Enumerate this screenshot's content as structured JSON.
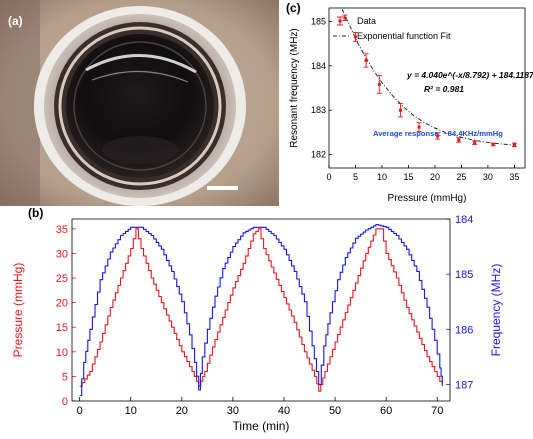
{
  "panels": {
    "a": "(a)",
    "b": "(b)",
    "c": "(c)"
  },
  "colors": {
    "pressure": "#e8171d",
    "frequency": "#1616e6",
    "fit": "#222222",
    "error_bar": "#e8171d",
    "annotation": "#1f49d6"
  },
  "photo": {
    "scale_bar_color": "#ffffff"
  },
  "chart_data": [
    {
      "panel": "c",
      "type": "scatter",
      "xlabel": "Pressure (mmHg)",
      "ylabel": "Resonant frequency (MHz)",
      "xlim": [
        0,
        37
      ],
      "ylim": [
        185.3,
        181.7
      ],
      "y_inverted": true,
      "xticks": [
        0,
        5,
        10,
        15,
        20,
        25,
        30,
        35
      ],
      "yticks": [
        182,
        183,
        184,
        185
      ],
      "legend_position": "top-left",
      "legend": [
        "Data",
        "Exponential function Fit"
      ],
      "series": [
        {
          "name": "Data",
          "x": [
            3.0,
            5.0,
            7.0,
            9.5,
            13.5,
            17.0,
            20.5,
            24.5,
            27.5,
            31.0,
            35.0
          ],
          "y": [
            185.08,
            184.65,
            184.12,
            183.58,
            183.0,
            182.62,
            182.42,
            182.33,
            182.27,
            182.23,
            182.22
          ],
          "error": [
            0.06,
            0.1,
            0.15,
            0.2,
            0.15,
            0.1,
            0.07,
            0.05,
            0.04,
            0.03,
            0.04
          ]
        },
        {
          "name": "Exponential function Fit",
          "x": [
            2.5,
            4,
            5.5,
            7,
            8.5,
            10,
            12,
            14,
            16,
            18,
            20,
            22,
            25,
            28,
            31,
            35
          ],
          "y": [
            185.27,
            184.88,
            184.5,
            184.18,
            183.88,
            183.62,
            183.33,
            183.08,
            182.88,
            182.72,
            182.6,
            182.5,
            182.39,
            182.31,
            182.26,
            182.21
          ]
        }
      ],
      "annotations": {
        "equation": "y = 4.040e^(-x/8.792) + 184.1187",
        "r2": "R² = 0.981",
        "average": "Average response: ~84.4KHz/mmHg"
      }
    },
    {
      "panel": "b",
      "type": "line",
      "xlabel": "Time (min)",
      "ylabel": "Pressure (mmHg)",
      "ylabel_right": "Frequency (MHz)",
      "xlim": [
        -1.5,
        72.5
      ],
      "ylim": [
        0,
        37
      ],
      "ylim_right": [
        187.3,
        184
      ],
      "xticks": [
        0,
        10,
        20,
        30,
        40,
        50,
        60,
        70
      ],
      "yticks": [
        0,
        5,
        10,
        15,
        20,
        25,
        30,
        35
      ],
      "yticks_right": [
        184,
        185,
        186,
        187
      ],
      "series": [
        {
          "name": "Pressure",
          "axis": "left",
          "x": [
            0,
            2,
            4,
            6,
            8,
            10,
            11,
            12,
            14,
            16,
            18,
            20,
            22,
            23.3,
            24.5,
            26,
            28,
            30,
            32,
            34,
            35,
            36,
            38,
            40,
            42,
            44,
            46,
            46.8,
            48,
            50,
            52,
            54,
            56,
            58,
            59,
            60,
            62,
            64,
            66,
            68,
            70,
            71
          ],
          "y": [
            3,
            6,
            12,
            19,
            25,
            31,
            35,
            31,
            25,
            20,
            15,
            10,
            6,
            3,
            6,
            11,
            17,
            23,
            28,
            34,
            35,
            31,
            26,
            21,
            16,
            10,
            5,
            2,
            6,
            12,
            18,
            24,
            30,
            35,
            35,
            30,
            25,
            19,
            14,
            9,
            5,
            3
          ]
        },
        {
          "name": "Frequency",
          "axis": "right",
          "x": [
            0,
            0.8,
            2,
            4,
            6,
            8,
            10,
            12,
            14,
            16,
            18,
            20,
            21.5,
            22.5,
            23.3,
            24,
            25,
            26.5,
            28,
            30,
            32,
            34,
            36,
            38,
            40,
            42,
            44,
            45.5,
            46.8,
            47.8,
            49,
            50.5,
            52,
            54,
            56,
            58,
            60,
            62,
            64,
            66,
            68,
            69.5,
            70.5,
            71
          ],
          "y": [
            187.2,
            186.6,
            186.0,
            185.1,
            184.6,
            184.3,
            184.15,
            184.15,
            184.3,
            184.55,
            184.95,
            185.5,
            186.1,
            186.6,
            187.1,
            186.5,
            186.0,
            185.4,
            184.9,
            184.5,
            184.25,
            184.15,
            184.15,
            184.3,
            184.55,
            184.95,
            185.5,
            186.3,
            187.0,
            186.3,
            185.7,
            185.1,
            184.7,
            184.35,
            184.2,
            184.1,
            184.15,
            184.3,
            184.55,
            184.95,
            185.6,
            186.2,
            186.7,
            187.0
          ]
        }
      ]
    }
  ]
}
